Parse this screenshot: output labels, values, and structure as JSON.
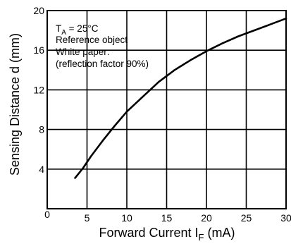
{
  "chart_data": {
    "type": "line",
    "xlabel": {
      "main": "Forward Current I",
      "sub": "F",
      "unit": " (mA)"
    },
    "ylabel": "Sensing Distance d (mm)",
    "xlim": [
      0,
      30
    ],
    "ylim": [
      0,
      20
    ],
    "x_ticks": [
      5,
      10,
      15,
      20,
      25,
      30
    ],
    "x_origin_label": "0",
    "y_ticks": [
      4,
      8,
      12,
      16,
      20
    ],
    "grid": true,
    "annotation": {
      "line1_main": "T",
      "line1_sub": "A",
      "line1_rest": " = 25°C",
      "line2": "Reference object",
      "line3": "White paper:",
      "line4": "(reflection factor 90%)"
    },
    "series": [
      {
        "x": [
          3.5,
          4.5,
          5.5,
          7,
          8.5,
          10,
          12,
          14,
          16,
          18,
          20,
          22,
          24,
          26,
          28,
          30
        ],
        "y": [
          3.1,
          4.1,
          5.3,
          6.9,
          8.4,
          9.8,
          11.3,
          12.8,
          14.0,
          15.0,
          15.9,
          16.7,
          17.4,
          18.0,
          18.6,
          19.2
        ]
      }
    ]
  }
}
